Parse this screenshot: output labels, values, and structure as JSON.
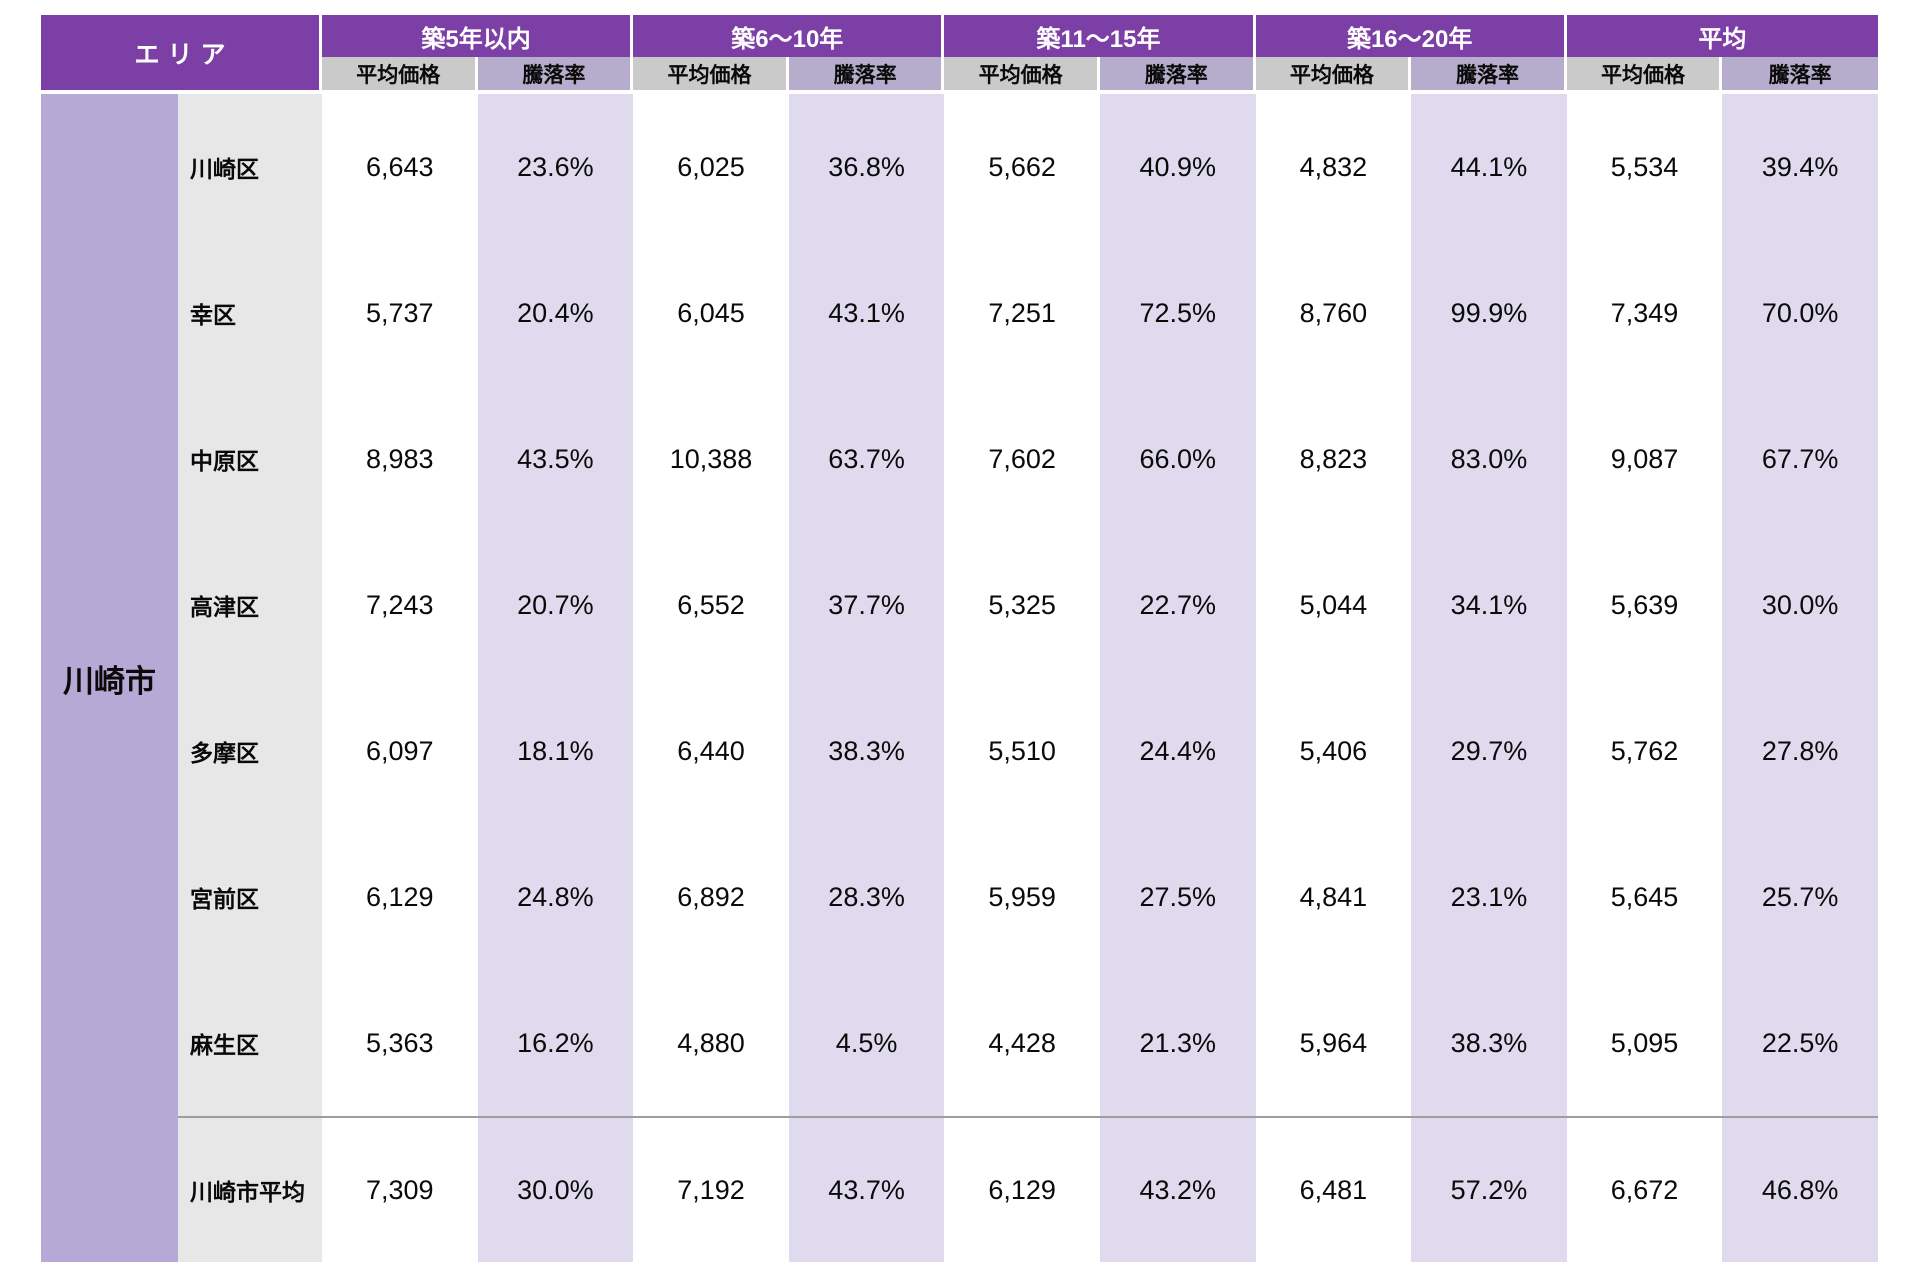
{
  "chart_data": {
    "type": "table",
    "area_header": "エリア",
    "city_group": "川崎市",
    "column_groups": [
      "築5年以内",
      "築6〜10年",
      "築11〜15年",
      "築16〜20年",
      "平均"
    ],
    "sub_columns": [
      "平均価格",
      "騰落率"
    ],
    "rows": [
      {
        "area": "川崎区",
        "cells": [
          "6,643",
          "23.6%",
          "6,025",
          "36.8%",
          "5,662",
          "40.9%",
          "4,832",
          "44.1%",
          "5,534",
          "39.4%"
        ]
      },
      {
        "area": "幸区",
        "cells": [
          "5,737",
          "20.4%",
          "6,045",
          "43.1%",
          "7,251",
          "72.5%",
          "8,760",
          "99.9%",
          "7,349",
          "70.0%"
        ]
      },
      {
        "area": "中原区",
        "cells": [
          "8,983",
          "43.5%",
          "10,388",
          "63.7%",
          "7,602",
          "66.0%",
          "8,823",
          "83.0%",
          "9,087",
          "67.7%"
        ]
      },
      {
        "area": "高津区",
        "cells": [
          "7,243",
          "20.7%",
          "6,552",
          "37.7%",
          "5,325",
          "22.7%",
          "5,044",
          "34.1%",
          "5,639",
          "30.0%"
        ]
      },
      {
        "area": "多摩区",
        "cells": [
          "6,097",
          "18.1%",
          "6,440",
          "38.3%",
          "5,510",
          "24.4%",
          "5,406",
          "29.7%",
          "5,762",
          "27.8%"
        ]
      },
      {
        "area": "宮前区",
        "cells": [
          "6,129",
          "24.8%",
          "6,892",
          "28.3%",
          "5,959",
          "27.5%",
          "4,841",
          "23.1%",
          "5,645",
          "25.7%"
        ]
      },
      {
        "area": "麻生区",
        "cells": [
          "5,363",
          "16.2%",
          "4,880",
          "4.5%",
          "4,428",
          "21.3%",
          "5,964",
          "38.3%",
          "5,095",
          "22.5%"
        ]
      },
      {
        "area": "川崎市平均",
        "cells": [
          "7,309",
          "30.0%",
          "7,192",
          "43.7%",
          "6,129",
          "43.2%",
          "6,481",
          "57.2%",
          "6,672",
          "46.8%"
        ]
      }
    ]
  },
  "colors": {
    "header_purple": "#7B3FA5",
    "subheader_gray": "#CACACA",
    "subheader_lavender": "#B5ADCB",
    "city_column_purple": "#B7A9D6",
    "area_column_gray": "#E7E7E7",
    "rate_column_lavender": "#E0DAEE",
    "price_column_white": "#FFFFFF",
    "summary_separator_gray": "#9E9E9E"
  }
}
